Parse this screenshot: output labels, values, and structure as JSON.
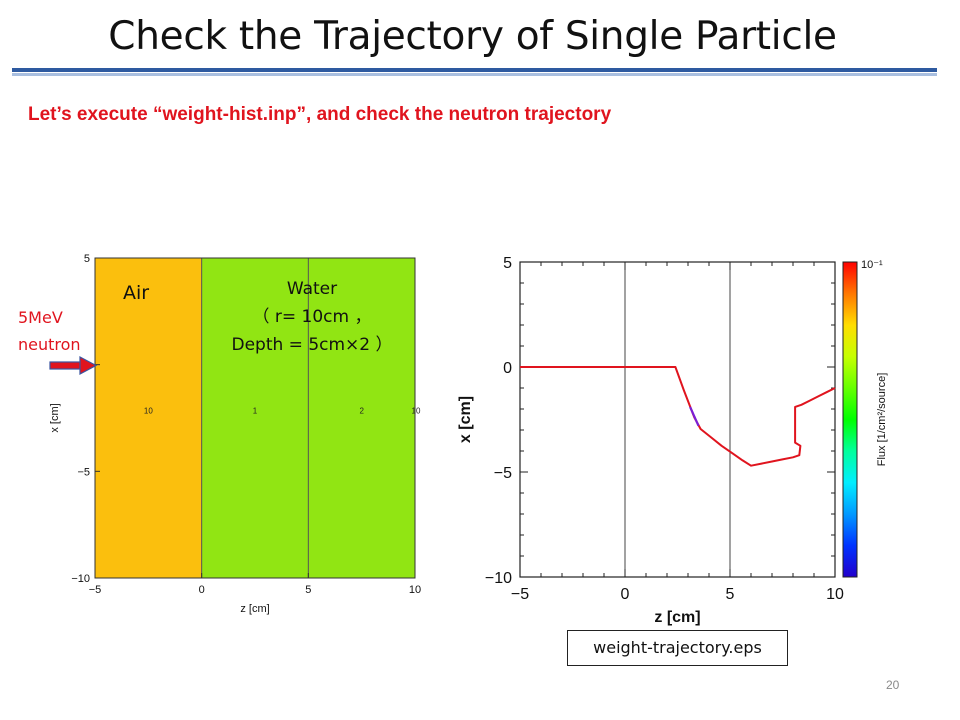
{
  "slide": {
    "title": "Check the Trajectory of Single Particle",
    "subtitle": "Let’s execute “weight-hist.inp”, and check the neutron trajectory",
    "page_number": "20",
    "file_label": "weight-trajectory.eps",
    "neutron_label_line1": "5MeV",
    "neutron_label_line2": "neutron",
    "air_label": "Air",
    "water_label_line1": "Water",
    "water_label_line2": "（ r= 10cm ，",
    "water_label_line3": "Depth = 5cm×2 ）"
  },
  "colors": {
    "title_rule": "#2e5aa0",
    "subtitle": "#e0141e",
    "air_region": "#fbbf0d",
    "water_region": "#91e513",
    "neutron_arrow": "#e0141e"
  },
  "chart_data": [
    {
      "type": "geometry-map",
      "xlabel": "z [cm]",
      "ylabel": "x [cm]",
      "xlim": [
        -5,
        10
      ],
      "ylim": [
        -10,
        5
      ],
      "x_ticks": [
        "−5",
        "0",
        "5",
        "10"
      ],
      "y_ticks": [
        "5",
        "0",
        "−5",
        "−10"
      ],
      "regions": [
        {
          "material": "Air",
          "z_range": [
            -5,
            0
          ],
          "color": "#fbbf0d",
          "region_label": "10"
        },
        {
          "material": "Water",
          "z_range": [
            0,
            5
          ],
          "color": "#91e513",
          "region_label": "1"
        },
        {
          "material": "Water",
          "z_range": [
            5,
            10
          ],
          "color": "#91e513",
          "region_label": "2"
        }
      ],
      "edge_region_label": "10"
    },
    {
      "type": "line",
      "xlabel": "z [cm]",
      "ylabel": "x [cm]",
      "xlim": [
        -5,
        10
      ],
      "ylim": [
        -10,
        5
      ],
      "x_ticks": [
        "−5",
        "0",
        "5",
        "10"
      ],
      "y_ticks": [
        "5",
        "0",
        "−5",
        "−10"
      ],
      "boundaries_z": [
        0,
        5
      ],
      "series": [
        {
          "z": [
            -5,
            2.4,
            2.8,
            3.3,
            3.6,
            4.1,
            4.6,
            5.1,
            5.6,
            6.0,
            6.5,
            7.0,
            7.5,
            8.0,
            8.3,
            8.35,
            8.1,
            8.1,
            8.4,
            8.8,
            9.2,
            9.6,
            10.0
          ],
          "x": [
            0,
            0,
            -1.1,
            -2.4,
            -2.95,
            -3.35,
            -3.75,
            -4.1,
            -4.45,
            -4.7,
            -4.6,
            -4.5,
            -4.4,
            -4.3,
            -4.2,
            -3.75,
            -3.6,
            -1.9,
            -1.8,
            -1.6,
            -1.4,
            -1.2,
            -1.0
          ]
        }
      ],
      "colorbar": {
        "label": "Flux [1/cm²/source]",
        "top_tick": "10⁻¹",
        "colors": [
          "#ff0000",
          "#ff7700",
          "#ffdd00",
          "#c6ff00",
          "#66ff00",
          "#00ff00",
          "#00ff9c",
          "#00eeff",
          "#0099ff",
          "#0033ff",
          "#2200cc"
        ]
      }
    }
  ]
}
